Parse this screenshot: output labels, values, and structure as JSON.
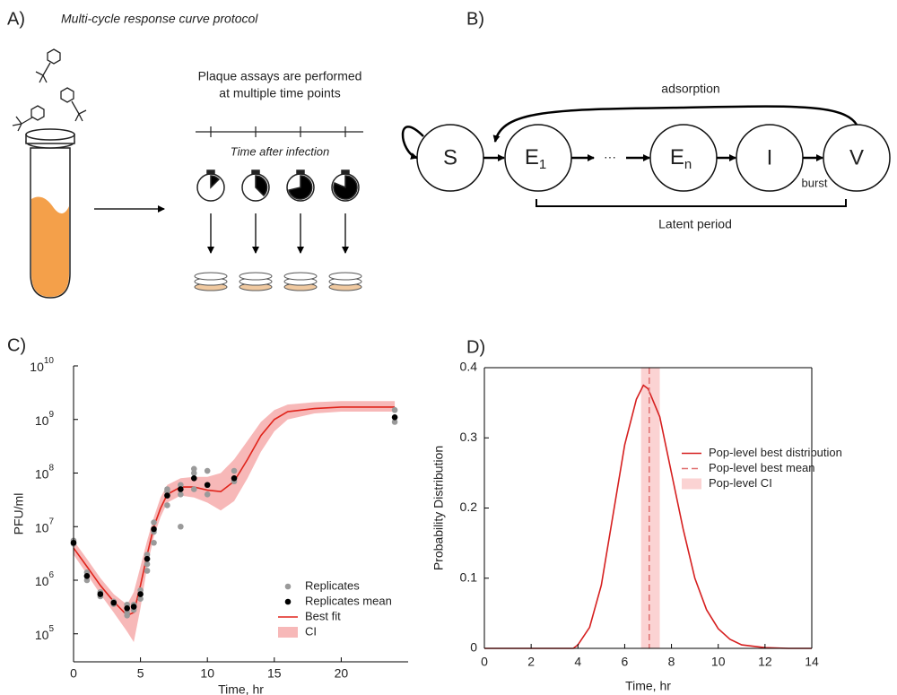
{
  "panel_a": {
    "label": "A)",
    "title": "Multi-cycle response curve protocol",
    "note_lines": [
      "Plaque assays are performed",
      "at multiple time points"
    ],
    "axis_label": "Time after infection"
  },
  "panel_b": {
    "label": "B)",
    "nodes": [
      {
        "label": "S"
      },
      {
        "label": "E",
        "subscript": "1"
      },
      {
        "label": "E",
        "subscript": "n"
      },
      {
        "label": "I"
      },
      {
        "label": "V"
      }
    ],
    "ellipsis": "···",
    "adsorption": "adsorption",
    "burst": "burst",
    "latent_period": "Latent period"
  },
  "chart_data": [
    {
      "type": "combo",
      "panel_label": "C)",
      "xlabel": "Time, hr",
      "ylabel": "PFU/ml",
      "yscale": "log",
      "xlim": [
        0,
        25
      ],
      "xticks": [
        0,
        5,
        10,
        15,
        20
      ],
      "ylim": [
        30000,
        10000000000
      ],
      "yticks": [
        {
          "value": 100000,
          "label": "10",
          "exp": "5"
        },
        {
          "value": 1000000,
          "label": "10",
          "exp": "6"
        },
        {
          "value": 10000000,
          "label": "10",
          "exp": "7"
        },
        {
          "value": 100000000,
          "label": "10",
          "exp": "8"
        },
        {
          "value": 1000000000,
          "label": "10",
          "exp": "9"
        },
        {
          "value": 10000000000,
          "label": "10",
          "exp": "10"
        }
      ],
      "legend": "lower right",
      "series": [
        {
          "name": "Replicates",
          "type": "scatter",
          "color": "#9a9a9a",
          "x": [
            0,
            0,
            1,
            1,
            1,
            2,
            2,
            3,
            3,
            4,
            4,
            4,
            4.5,
            4.5,
            5,
            5,
            5.5,
            5.5,
            5.5,
            6,
            6,
            6,
            7,
            7,
            7,
            8,
            8,
            8,
            9,
            9,
            9,
            10,
            10,
            12,
            12,
            24,
            24
          ],
          "values": [
            5500000,
            4800000,
            1400000,
            1000000,
            1200000,
            500000,
            600000,
            400000,
            360000,
            250000,
            350000,
            220000,
            350000,
            280000,
            450000,
            650000,
            1500000,
            3000000,
            2000000,
            12000000,
            5000000,
            8000000,
            25000000,
            50000000,
            45000000,
            10000000,
            60000000,
            40000000,
            120000000,
            50000000,
            100000000,
            110000000,
            40000000,
            110000000,
            70000000,
            1500000000,
            900000000
          ]
        },
        {
          "name": "Replicates mean",
          "type": "scatter",
          "color": "#000000",
          "x": [
            0,
            1,
            2,
            3,
            4,
            4.5,
            5,
            5.5,
            6,
            7,
            8,
            9,
            10,
            12,
            24
          ],
          "values": [
            5000000,
            1200000,
            550000,
            380000,
            300000,
            320000,
            550000,
            2500000,
            9000000,
            38000000,
            50000000,
            80000000,
            60000000,
            80000000,
            1100000000
          ]
        },
        {
          "name": "Best fit",
          "type": "line",
          "color": "#e0241b",
          "x": [
            0,
            1,
            2,
            3,
            4,
            4.5,
            5,
            5.5,
            6,
            6.5,
            7,
            8,
            9,
            10,
            11,
            12,
            13,
            14,
            15,
            16,
            18,
            20,
            22,
            24
          ],
          "values": [
            4000000,
            1800000,
            800000,
            400000,
            220000,
            250000,
            800000,
            3000000,
            10000000,
            22000000,
            40000000,
            55000000,
            55000000,
            48000000,
            45000000,
            70000000,
            180000000,
            500000000,
            1000000000,
            1400000000,
            1600000000,
            1700000000,
            1700000000,
            1700000000
          ]
        },
        {
          "name": "CI",
          "type": "band",
          "color": "#f7b8b8",
          "x": [
            0,
            1,
            2,
            3,
            4,
            4.5,
            5,
            5.5,
            6,
            6.5,
            7,
            8,
            9,
            10,
            11,
            12,
            13,
            14,
            15,
            16,
            18,
            20,
            22,
            24
          ],
          "lower": [
            3000000,
            1300000,
            550000,
            250000,
            110000,
            70000,
            300000,
            1800000,
            6500000,
            15000000,
            28000000,
            38000000,
            35000000,
            28000000,
            20000000,
            30000000,
            80000000,
            250000000,
            600000000,
            1000000000,
            1300000000,
            1400000000,
            1400000000,
            1400000000
          ],
          "upper": [
            5500000,
            2500000,
            1100000,
            550000,
            350000,
            600000,
            1800000,
            5500000,
            15000000,
            35000000,
            60000000,
            80000000,
            85000000,
            85000000,
            100000000,
            180000000,
            400000000,
            900000000,
            1500000000,
            1900000000,
            2100000000,
            2200000000,
            2200000000,
            2200000000
          ]
        }
      ]
    },
    {
      "type": "line",
      "panel_label": "D)",
      "xlabel": "Time, hr",
      "ylabel": "Probability Distribution",
      "xlim": [
        0,
        14
      ],
      "xticks": [
        0,
        2,
        4,
        6,
        8,
        10,
        12,
        14
      ],
      "ylim": [
        0,
        0.4
      ],
      "yticks": [
        0,
        0.1,
        0.2,
        0.3,
        0.4
      ],
      "box": true,
      "legend": "center right",
      "series": [
        {
          "name": "Pop-level best distribution",
          "type": "line",
          "color": "#d62020",
          "x": [
            0,
            1,
            2,
            3,
            3.8,
            4,
            4.5,
            5,
            5.5,
            6,
            6.5,
            6.8,
            7,
            7.5,
            8,
            8.5,
            9,
            9.5,
            10,
            10.5,
            11,
            12,
            13,
            14
          ],
          "values": [
            0,
            0,
            0,
            0,
            0,
            0.005,
            0.03,
            0.09,
            0.19,
            0.29,
            0.355,
            0.375,
            0.37,
            0.33,
            0.25,
            0.17,
            0.1,
            0.055,
            0.028,
            0.013,
            0.005,
            0.001,
            0,
            0
          ]
        },
        {
          "name": "Pop-level best mean",
          "type": "vline",
          "color": "#e07070",
          "dash": true,
          "value": 7.05
        },
        {
          "name": "Pop-level CI",
          "type": "vband",
          "color": "#fbd3d3",
          "range": [
            6.7,
            7.5
          ]
        }
      ]
    }
  ]
}
